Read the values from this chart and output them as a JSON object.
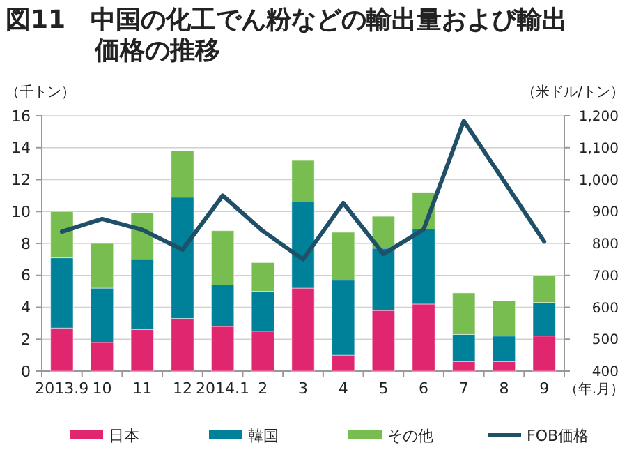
{
  "chart_data": {
    "type": "bar",
    "title": "図11　中国の化工でん粉などの輸出量および輸出価格の推移",
    "ylabel": "（千トン）",
    "y2label": "（米ドル/トン）",
    "xlabel": "（年.月）",
    "categories": [
      "2013.9",
      "10",
      "11",
      "12",
      "2014.1",
      "2",
      "3",
      "4",
      "5",
      "6",
      "7",
      "8",
      "9"
    ],
    "stacked": true,
    "series": [
      {
        "name": "日本",
        "color": "#e0266e",
        "values": [
          2.7,
          1.8,
          2.6,
          3.3,
          2.8,
          2.5,
          5.2,
          1.0,
          3.8,
          4.2,
          0.6,
          0.6,
          2.2
        ]
      },
      {
        "name": "韓国",
        "color": "#00819a",
        "values": [
          4.4,
          3.4,
          4.4,
          7.6,
          2.6,
          2.5,
          5.4,
          4.7,
          3.9,
          4.7,
          1.7,
          1.6,
          2.1
        ]
      },
      {
        "name": "その他",
        "color": "#77bd4f",
        "values": [
          2.9,
          2.8,
          2.9,
          2.9,
          3.4,
          1.8,
          2.6,
          3.0,
          2.0,
          2.3,
          2.6,
          2.2,
          1.7
        ]
      },
      {
        "name": "FOB価格",
        "type": "line",
        "axis": "y2",
        "color": "#1f5068",
        "values": [
          837,
          877,
          843,
          780,
          950,
          839,
          750,
          927,
          767,
          844,
          1184,
          995,
          806
        ]
      }
    ],
    "ylim": [
      0,
      16
    ],
    "yticks": [
      0,
      2,
      4,
      6,
      8,
      10,
      12,
      14,
      16
    ],
    "y2lim": [
      400,
      1200
    ],
    "y2ticks": [
      400,
      500,
      600,
      700,
      800,
      900,
      {
        "value": 1000,
        "label": "1,000"
      },
      {
        "value": 1100,
        "label": "1,100"
      },
      {
        "value": 1200,
        "label": "1,200"
      }
    ],
    "grid": "y",
    "legend": "bottom"
  }
}
